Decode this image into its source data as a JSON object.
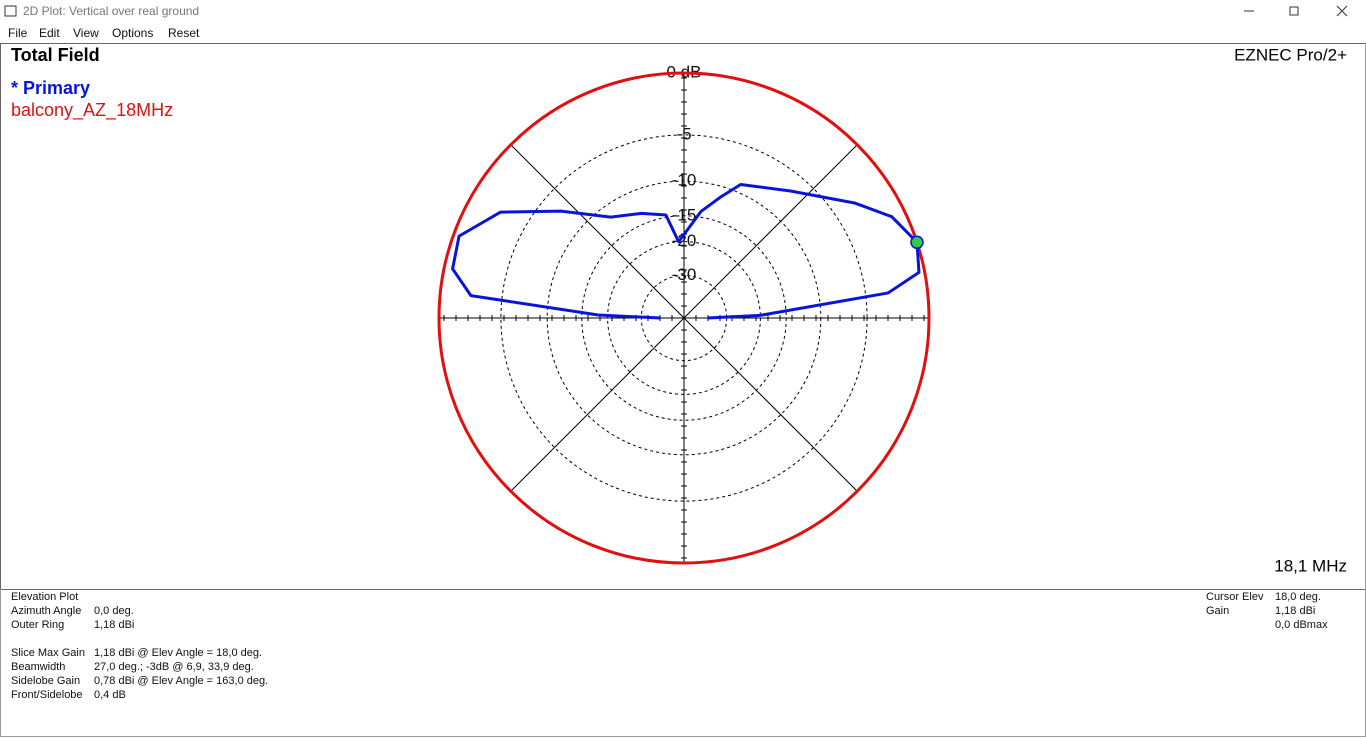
{
  "window": {
    "title": "2D Plot: Vertical over real ground"
  },
  "menu": [
    "File",
    "Edit",
    "View",
    "Options",
    "Reset"
  ],
  "chart_data": {
    "type": "polar",
    "title": "Total Field",
    "brand": "EZNEC Pro/2+",
    "frequency": "18,1 MHz",
    "rlim": [
      -40,
      0
    ],
    "rticks": [
      {
        "value": 0,
        "label": "0 dB"
      },
      -5,
      -10,
      -15,
      -20,
      -30
    ],
    "series": [
      {
        "name": "* Primary",
        "color": "#0a14d8",
        "x": [
          0,
          2,
          7,
          11,
          18,
          26,
          34,
          50,
          67,
          73,
          81,
          94,
          100,
          112,
          126,
          139,
          150,
          160,
          168,
          174,
          178,
          180
        ],
        "values": [
          -40,
          -20,
          -3,
          -0.4,
          0,
          -1,
          -3,
          -6.7,
          -9,
          -11.3,
          -14.1,
          -20,
          -14.6,
          -13.3,
          -11.6,
          -7,
          -2.5,
          -0.4,
          -0.6,
          -2.3,
          -18,
          -40
        ]
      },
      {
        "name": "balcony_AZ_18MHz",
        "color": "#e01010",
        "x": [
          0,
          90,
          180,
          270,
          360
        ],
        "values": [
          0,
          0,
          0,
          0,
          0
        ]
      }
    ],
    "cursor": {
      "x": 18,
      "value": 0,
      "color": "#2ecc40"
    }
  },
  "info": {
    "heading": "Elevation Plot",
    "group1": [
      {
        "label": "Azimuth Angle",
        "value": "0,0 deg."
      },
      {
        "label": "Outer Ring",
        "value": "1,18 dBi"
      }
    ],
    "group2": [
      {
        "label": "Slice Max Gain",
        "value": "1,18 dBi @ Elev Angle = 18,0 deg."
      },
      {
        "label": "Beamwidth",
        "value": "27,0 deg.; -3dB @ 6,9, 33,9 deg."
      },
      {
        "label": "Sidelobe Gain",
        "value": "0,78 dBi @ Elev Angle = 163,0 deg."
      },
      {
        "label": "Front/Sidelobe",
        "value": "0,4 dB"
      }
    ],
    "right": [
      {
        "label": "Cursor Elev",
        "value": "18,0 deg."
      },
      {
        "label": "Gain",
        "value": "1,18 dBi"
      }
    ],
    "right_extra": "0,0 dBmax"
  }
}
